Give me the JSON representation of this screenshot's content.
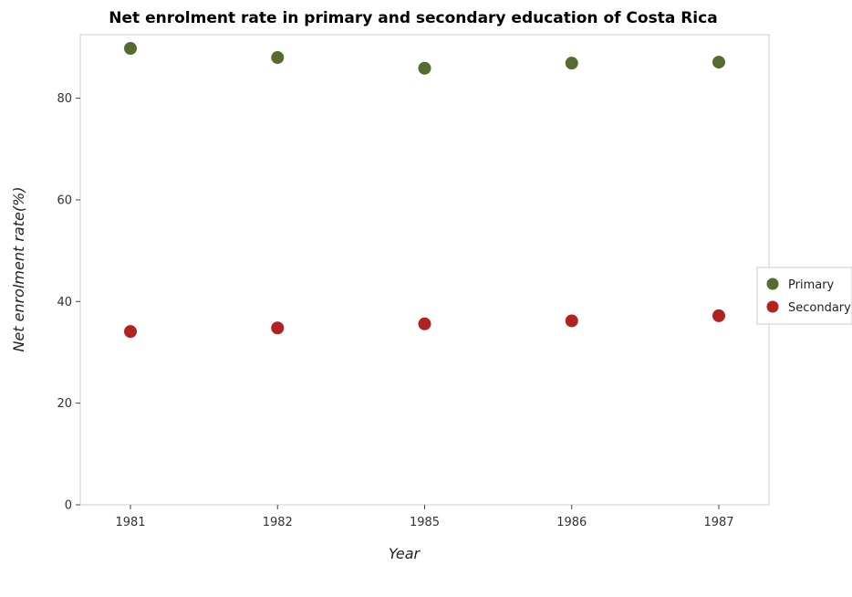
{
  "chart_data": {
    "type": "scatter",
    "title": "Net enrolment rate in primary and secondary education of Costa Rica",
    "xlabel": "Year",
    "ylabel": "Net enrolment rate(%)",
    "categories": [
      "1981",
      "1982",
      "1985",
      "1986",
      "1987"
    ],
    "ylim": [
      0,
      92.5
    ],
    "yticks": [
      0,
      20,
      40,
      60,
      80
    ],
    "grid": false,
    "legend_position": "right",
    "series": [
      {
        "name": "Primary",
        "color": "#556b2f",
        "values": [
          89.8,
          88.0,
          85.9,
          86.9,
          87.1
        ]
      },
      {
        "name": "Secondary",
        "color": "#b22222",
        "values": [
          34.1,
          34.8,
          35.6,
          36.2,
          37.2
        ]
      }
    ]
  }
}
